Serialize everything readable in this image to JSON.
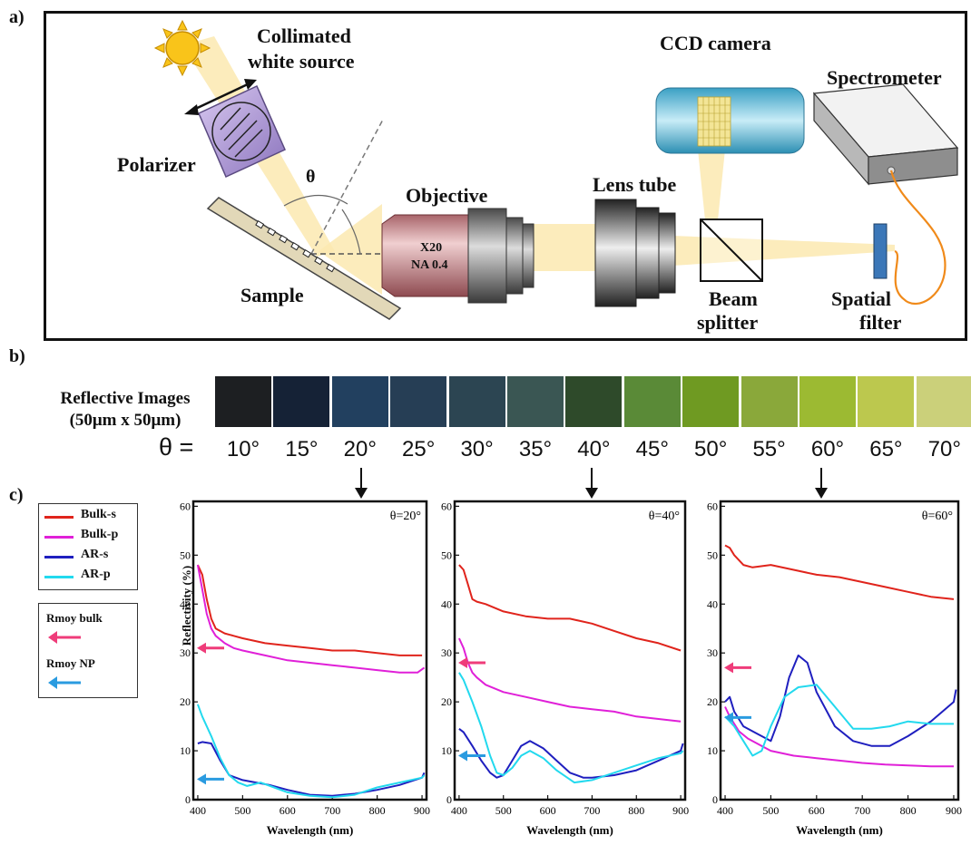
{
  "panels": {
    "a": "a)",
    "b": "b)",
    "c": "c)"
  },
  "setup": {
    "source_label_1": "Collimated",
    "source_label_2": "white source",
    "polarizer": "Polarizer",
    "theta": "θ",
    "sample": "Sample",
    "objective": "Objective",
    "objective_mag": "X20",
    "objective_na": "NA 0.4",
    "lens_tube": "Lens tube",
    "ccd": "CCD camera",
    "spectrometer": "Spectrometer",
    "beam_splitter_1": "Beam",
    "beam_splitter_2": "splitter",
    "spatial_filter_1": "Spatial",
    "spatial_filter_2": "filter"
  },
  "reflective_images": {
    "label_1": "Reflective Images",
    "label_2": "(50μm x 50μm)",
    "theta_eq": "θ  =",
    "tiles": [
      {
        "angle": "10°",
        "color": "#1d1f22"
      },
      {
        "angle": "15°",
        "color": "#152236"
      },
      {
        "angle": "20°",
        "color": "#22405f"
      },
      {
        "angle": "25°",
        "color": "#263e55"
      },
      {
        "angle": "30°",
        "color": "#2c4552"
      },
      {
        "angle": "35°",
        "color": "#3a5653"
      },
      {
        "angle": "40°",
        "color": "#2e4a2a"
      },
      {
        "angle": "45°",
        "color": "#5a8a37"
      },
      {
        "angle": "50°",
        "color": "#6f9a22"
      },
      {
        "angle": "55°",
        "color": "#8aa83a"
      },
      {
        "angle": "60°",
        "color": "#9cba32"
      },
      {
        "angle": "65°",
        "color": "#bcc84e"
      },
      {
        "angle": "70°",
        "color": "#cbd07a"
      }
    ]
  },
  "legend": [
    {
      "name": "Bulk-s",
      "color": "#e0241c"
    },
    {
      "name": "Bulk-p",
      "color": "#e020d8"
    },
    {
      "name": "AR-s",
      "color": "#1f1fbf"
    },
    {
      "name": "AR-p",
      "color": "#22d9ee"
    }
  ],
  "rmoy": {
    "bulk": "Rmoy bulk",
    "np": "Rmoy NP",
    "bulk_color": "#ef3c7a",
    "np_color": "#2a9be0"
  },
  "ylabel": "Reflectivity (%)",
  "chart_data": [
    {
      "type": "line",
      "annotation": "θ=20°",
      "xlabel": "Wavelength (nm)",
      "ylabel": "Reflectivity (%)",
      "xlim": [
        390,
        910
      ],
      "ylim": [
        0,
        61
      ],
      "xticks": [
        400,
        500,
        600,
        700,
        800,
        900
      ],
      "yticks": [
        0,
        10,
        20,
        30,
        40,
        50,
        60
      ],
      "rmoy_bulk": 31,
      "rmoy_np": 4.2,
      "series": [
        {
          "name": "Bulk-s",
          "color": "#e0241c",
          "x": [
            400,
            410,
            420,
            430,
            440,
            460,
            480,
            500,
            550,
            600,
            650,
            700,
            750,
            800,
            850,
            900
          ],
          "y": [
            48,
            46,
            41,
            37,
            35,
            34,
            33.5,
            33,
            32,
            31.5,
            31,
            30.5,
            30.5,
            30,
            29.5,
            29.5
          ]
        },
        {
          "name": "Bulk-p",
          "color": "#e020d8",
          "x": [
            400,
            410,
            420,
            430,
            440,
            460,
            480,
            500,
            550,
            600,
            650,
            700,
            750,
            800,
            850,
            890,
            905
          ],
          "y": [
            48,
            43,
            38,
            35,
            33.5,
            32,
            31,
            30.5,
            29.5,
            28.5,
            28,
            27.5,
            27,
            26.5,
            26,
            26,
            27
          ]
        },
        {
          "name": "AR-s",
          "color": "#1f1fbf",
          "x": [
            400,
            410,
            430,
            450,
            470,
            500,
            530,
            560,
            600,
            650,
            700,
            750,
            800,
            850,
            900,
            905
          ],
          "y": [
            11.5,
            11.8,
            11.5,
            8,
            5,
            4,
            3.5,
            3,
            2,
            1,
            0.8,
            1.2,
            2,
            3,
            4.5,
            5.5
          ]
        },
        {
          "name": "AR-p",
          "color": "#22d9ee",
          "x": [
            400,
            410,
            430,
            450,
            470,
            490,
            510,
            540,
            570,
            600,
            650,
            700,
            750,
            800,
            850,
            900,
            905
          ],
          "y": [
            19.5,
            17,
            13,
            8.5,
            5,
            3.5,
            2.8,
            3.5,
            2.5,
            1.5,
            0.8,
            0.5,
            1,
            2.5,
            3.5,
            4.5,
            5
          ]
        }
      ]
    },
    {
      "type": "line",
      "annotation": "θ=40°",
      "xlabel": "Wavelength (nm)",
      "ylabel": "",
      "xlim": [
        390,
        910
      ],
      "ylim": [
        0,
        61
      ],
      "xticks": [
        400,
        500,
        600,
        700,
        800,
        900
      ],
      "yticks": [
        0,
        10,
        20,
        30,
        40,
        50,
        60
      ],
      "rmoy_bulk": 28,
      "rmoy_np": 9,
      "series": [
        {
          "name": "Bulk-s",
          "color": "#e0241c",
          "x": [
            400,
            410,
            420,
            430,
            440,
            460,
            500,
            550,
            600,
            650,
            700,
            750,
            800,
            850,
            900
          ],
          "y": [
            48,
            47,
            44,
            41,
            40.5,
            40,
            38.5,
            37.5,
            37,
            37,
            36,
            34.5,
            33,
            32,
            30.5
          ]
        },
        {
          "name": "Bulk-p",
          "color": "#e020d8",
          "x": [
            400,
            410,
            420,
            430,
            440,
            460,
            500,
            550,
            600,
            650,
            700,
            750,
            800,
            850,
            900
          ],
          "y": [
            33,
            31,
            28,
            26,
            25,
            23.5,
            22,
            21,
            20,
            19,
            18.5,
            18,
            17,
            16.5,
            16
          ]
        },
        {
          "name": "AR-s",
          "color": "#1f1fbf",
          "x": [
            400,
            410,
            430,
            450,
            470,
            485,
            500,
            520,
            540,
            560,
            590,
            620,
            650,
            680,
            700,
            750,
            800,
            850,
            900,
            905
          ],
          "y": [
            14.5,
            13.8,
            11,
            8,
            5.5,
            4.5,
            5,
            8,
            11,
            12,
            10.5,
            8,
            5.5,
            4.5,
            4.5,
            5,
            6,
            8,
            10,
            11.5
          ]
        },
        {
          "name": "AR-p",
          "color": "#22d9ee",
          "x": [
            400,
            410,
            430,
            450,
            470,
            485,
            500,
            520,
            540,
            560,
            590,
            620,
            660,
            700,
            750,
            800,
            850,
            900,
            905
          ],
          "y": [
            26,
            24.5,
            20,
            15,
            9,
            5.5,
            5,
            6.5,
            9,
            10,
            8.5,
            6,
            3.5,
            4,
            5.5,
            7,
            8.5,
            9.5,
            10
          ]
        }
      ]
    },
    {
      "type": "line",
      "annotation": "θ=60°",
      "xlabel": "Wavelength (nm)",
      "ylabel": "",
      "xlim": [
        390,
        910
      ],
      "ylim": [
        0,
        61
      ],
      "xticks": [
        400,
        500,
        600,
        700,
        800,
        900
      ],
      "yticks": [
        0,
        10,
        20,
        30,
        40,
        50,
        60
      ],
      "rmoy_bulk": 27,
      "rmoy_np": 16.8,
      "series": [
        {
          "name": "Bulk-s",
          "color": "#e0241c",
          "x": [
            400,
            410,
            420,
            440,
            460,
            500,
            550,
            600,
            650,
            700,
            750,
            800,
            850,
            900
          ],
          "y": [
            52,
            51.5,
            50,
            48,
            47.5,
            48,
            47,
            46,
            45.5,
            44.5,
            43.5,
            42.5,
            41.5,
            41
          ]
        },
        {
          "name": "Bulk-p",
          "color": "#e020d8",
          "x": [
            400,
            410,
            430,
            450,
            480,
            500,
            550,
            600,
            650,
            700,
            750,
            800,
            850,
            900
          ],
          "y": [
            19,
            17,
            14,
            12.5,
            11,
            10,
            9,
            8.5,
            8,
            7.5,
            7.2,
            7,
            6.8,
            6.8
          ]
        },
        {
          "name": "AR-s",
          "color": "#1f1fbf",
          "x": [
            400,
            410,
            420,
            440,
            470,
            500,
            520,
            540,
            560,
            580,
            600,
            640,
            680,
            720,
            760,
            800,
            850,
            900,
            905
          ],
          "y": [
            20,
            21,
            18,
            15,
            13.5,
            12,
            17,
            25,
            29.5,
            28,
            22,
            15,
            12,
            11,
            11,
            13,
            16,
            20,
            22.5
          ]
        },
        {
          "name": "AR-p",
          "color": "#22d9ee",
          "x": [
            400,
            410,
            420,
            440,
            460,
            480,
            500,
            530,
            560,
            600,
            640,
            680,
            720,
            760,
            800,
            850,
            900
          ],
          "y": [
            17,
            16,
            15,
            12,
            9,
            10,
            15,
            21,
            23,
            23.5,
            19,
            14.5,
            14.5,
            15,
            16,
            15.5,
            15.5
          ]
        }
      ]
    }
  ]
}
